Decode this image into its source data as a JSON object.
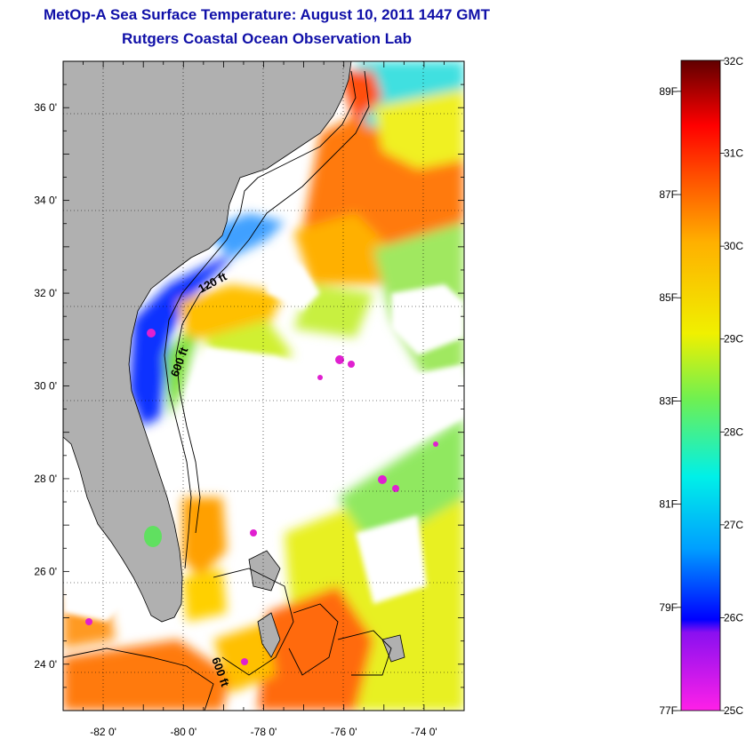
{
  "title": {
    "line1": "MetOp-A Sea Surface Temperature:  August 10, 2011 1447 GMT",
    "line2": "Rutgers Coastal Ocean Observation Lab"
  },
  "map": {
    "lon_range": [
      -83,
      -73
    ],
    "lat_range": [
      23,
      37
    ],
    "lon_ticks": [
      {
        "value": -82,
        "label": "-82 0'"
      },
      {
        "value": -80,
        "label": "-80 0'"
      },
      {
        "value": -78,
        "label": "-78 0'"
      },
      {
        "value": -76,
        "label": "-76 0'"
      },
      {
        "value": -74,
        "label": "-74 0'"
      }
    ],
    "lat_ticks": [
      {
        "value": 24,
        "label": "24 0'"
      },
      {
        "value": 26,
        "label": "26 0'"
      },
      {
        "value": 28,
        "label": "28 0'"
      },
      {
        "value": 30,
        "label": "30 0'"
      },
      {
        "value": 32,
        "label": "32 0'"
      },
      {
        "value": 34,
        "label": "34 0'"
      },
      {
        "value": 36,
        "label": "36 0'"
      }
    ],
    "land_color": "#b0b0b0",
    "grid": "dotted",
    "contour_labels": [
      "120 ft",
      "600 ft",
      "600 ft"
    ]
  },
  "colorbar": {
    "celsius_range": [
      25,
      32
    ],
    "celsius_labels": [
      "32C",
      "31C",
      "30C",
      "29C",
      "28C",
      "27C",
      "26C",
      "25C"
    ],
    "fahrenheit_labels": [
      {
        "value": 89,
        "label": "89F"
      },
      {
        "value": 87,
        "label": "87F"
      },
      {
        "value": 85,
        "label": "85F"
      },
      {
        "value": 83,
        "label": "83F"
      },
      {
        "value": 81,
        "label": "81F"
      },
      {
        "value": 79,
        "label": "79F"
      },
      {
        "value": 77,
        "label": "77F"
      }
    ],
    "colors": [
      "#ff20e8",
      "#7a10f0",
      "#0000ff",
      "#00a0ff",
      "#00f0f0",
      "#60f060",
      "#e8f000",
      "#ffb000",
      "#ff5000",
      "#ff0000",
      "#b00000",
      "#700000"
    ]
  }
}
